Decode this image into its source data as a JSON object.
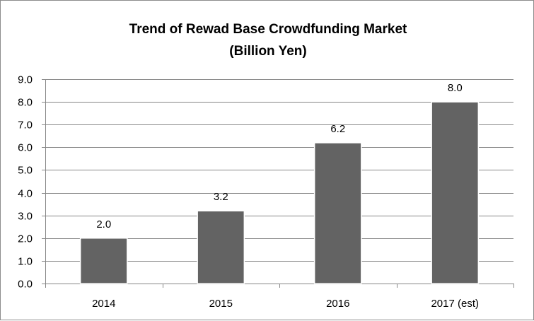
{
  "chart_data": {
    "type": "bar",
    "title": "Trend of Rewad Base Crowdfunding Market",
    "subtitle": "(Billion Yen)",
    "categories": [
      "2014",
      "2015",
      "2016",
      "2017 (est)"
    ],
    "values": [
      2.0,
      3.2,
      6.2,
      8.0
    ],
    "value_labels": [
      "2.0",
      "3.2",
      "6.2",
      "8.0"
    ],
    "ylim": [
      0,
      9
    ],
    "yticks": [
      "0.0",
      "1.0",
      "2.0",
      "3.0",
      "4.0",
      "5.0",
      "6.0",
      "7.0",
      "8.0",
      "9.0"
    ],
    "xlabel": "",
    "ylabel": "",
    "grid": "horizontal",
    "legend": "none",
    "bar_color": "#636363",
    "grid_color": "#878787"
  }
}
